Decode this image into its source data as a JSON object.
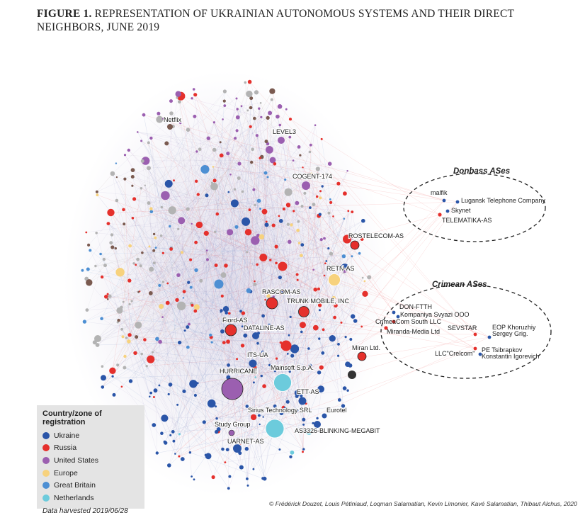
{
  "figure": {
    "label": "FIGURE 1.",
    "title": "REPRESENTATION OF UKRAINIAN AUTONOMOUS SYSTEMS AND THEIR DIRECT NEIGHBORS, JUNE 2019"
  },
  "colors": {
    "ukraine": "#2a55a8",
    "russia": "#e5302c",
    "united_states": "#9b5fb0",
    "europe": "#f7d27d",
    "great_britain": "#4d8fd3",
    "netherlands": "#6ccbdc",
    "other_gray": "#b3b3b3",
    "other_brown": "#7a5a50",
    "dark": "#333333"
  },
  "legend": {
    "title": "Country/zone of registration",
    "items": [
      {
        "label": "Ukraine",
        "color": "#2a55a8"
      },
      {
        "label": "Russia",
        "color": "#e5302c"
      },
      {
        "label": "United States",
        "color": "#9b5fb0"
      },
      {
        "label": "Europe",
        "color": "#f7d27d"
      },
      {
        "label": "Great Britain",
        "color": "#4d8fd3"
      },
      {
        "label": "Netherlands",
        "color": "#6ccbdc"
      }
    ],
    "note": "Data harvested 2019/06/28"
  },
  "groups": {
    "donbass": {
      "title": "Donbass ASes",
      "members": [
        "malfik",
        "Lugansk Telephone Company",
        "Skynet",
        "TELEMATIKA-AS"
      ]
    },
    "crimean": {
      "title": "Crimean ASes",
      "members": [
        "DON-FTTH",
        "Kompaniya Svyazi OOO",
        "CrimeaCom South LLC",
        "Miranda-Media Ltd",
        "SEVSTAR",
        "EOP Khoruzhiy",
        "Sergey Grig.",
        "LLC\"Crelcom\"",
        "PE Tsibrapkov",
        "Konstantin Igorevich"
      ]
    }
  },
  "nodes": {
    "netflix": "Netflix",
    "level3": "LEVEL3",
    "cogent": "COGENT-174",
    "rostelecom": "ROSTELECOM-AS",
    "retn": "RETN-AS",
    "rascom": "RASCOM-AS",
    "trunk": "TRUNK MOBILE, INC",
    "fiord": "Fiord-AS",
    "dataline": "DATALINE-AS",
    "itsua": "ITS-UA",
    "miran": "Miran Ltd.",
    "hurricane": "HURRICANE",
    "mainsoft": "Mainsoft S.p.A.",
    "ettas": "ETT-AS",
    "eurotel": "Eurotel",
    "sirius": "Sirius Technology SRL",
    "studygroup": "Study Group",
    "blinking": "AS3326-BLINKING-MEGABIT",
    "uarnet": "UARNET-AS"
  },
  "credit": "© Frédérick Douzet, Louis Pétiniaud, Loqman Salamatian, Kevin Limonier, Kavé Salamatian, Thibaut Alchus, 2020"
}
